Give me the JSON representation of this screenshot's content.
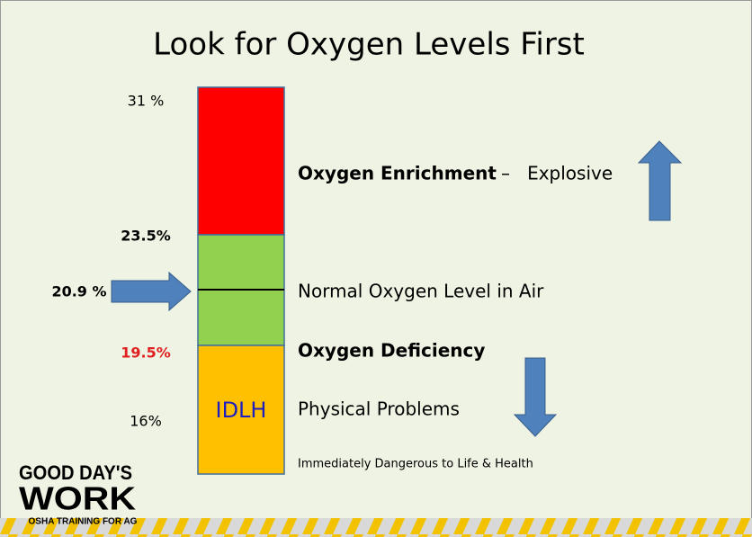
{
  "title": "Look for Oxygen Levels First",
  "levels": {
    "top": "31 %",
    "upper": "23.5%",
    "normal": "20.9 %",
    "lower": "19.5%",
    "bottom": "16%"
  },
  "bar_label": "IDLH",
  "descriptions": {
    "enrichment": "Oxygen Enrichment",
    "enrichment_note": "–   Explosive",
    "normal": "Normal Oxygen Level in Air",
    "deficiency": "Oxygen Deficiency",
    "physical": "Physical Problems",
    "idlh": "Immediately Dangerous to Life & Health"
  },
  "logo": {
    "line1": "GOOD DAY'S",
    "line2": "WORK",
    "tagline": "OSHA TRAINING FOR AG"
  }
}
